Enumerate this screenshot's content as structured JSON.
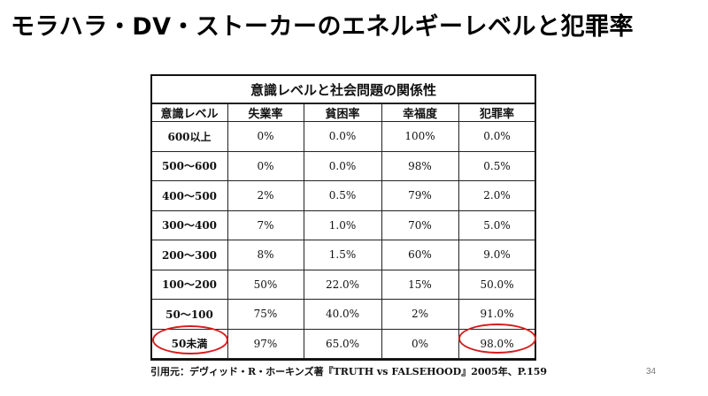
{
  "slide": {
    "title": "モラハラ・DV・ストーカーのエネルギーレベルと犯罪率",
    "page_number": "34"
  },
  "table": {
    "caption": "意識レベルと社会問題の関係性",
    "headers": [
      "意識レベル",
      "失業率",
      "貧困率",
      "幸福度",
      "犯罪率"
    ],
    "rows": [
      [
        "600以上",
        "0%",
        "0.0%",
        "100%",
        "0.0%"
      ],
      [
        "500～600",
        "0%",
        "0.0%",
        "98%",
        "0.5%"
      ],
      [
        "400～500",
        "2%",
        "0.5%",
        "79%",
        "2.0%"
      ],
      [
        "300～400",
        "7%",
        "1.0%",
        "70%",
        "5.0%"
      ],
      [
        "200～300",
        "8%",
        "1.5%",
        "60%",
        "9.0%"
      ],
      [
        "100～200",
        "50%",
        "22.0%",
        "15%",
        "50.0%"
      ],
      [
        "50～100",
        "75%",
        "40.0%",
        "2%",
        "91.0%"
      ],
      [
        "50未満",
        "97%",
        "65.0%",
        "0%",
        "98.0%"
      ]
    ]
  },
  "highlight_color": "#d81b1b",
  "citation": "引用元：デヴィッド・R・ホーキンズ著『TRUTH vs FALSEHOOD』2005年、P.159"
}
